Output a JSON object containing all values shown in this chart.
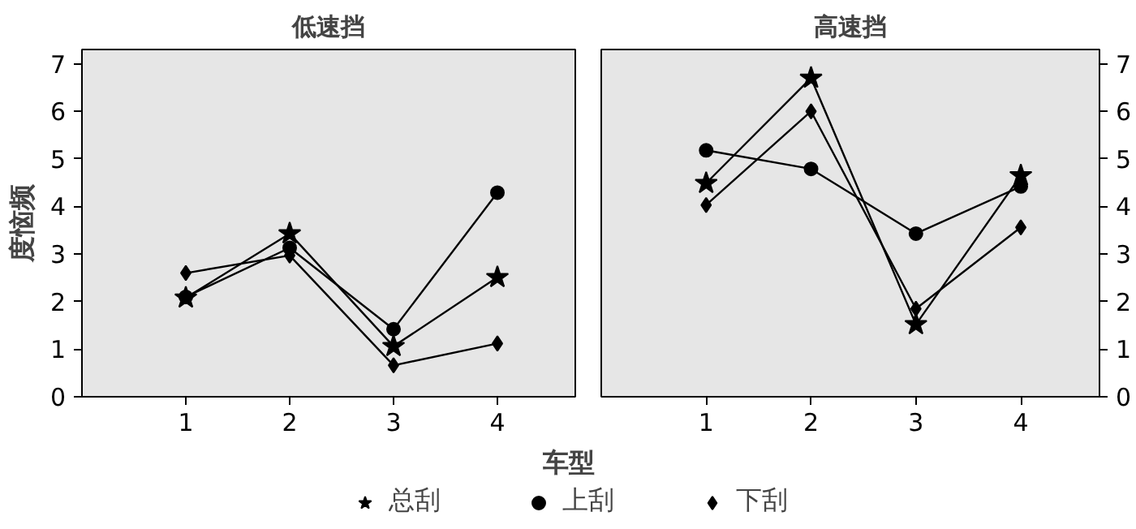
{
  "chart_data": [
    {
      "type": "line",
      "title": "低速挡",
      "ylabel": "度恼频",
      "xlabel": "车型",
      "x": [
        1,
        2,
        3,
        4
      ],
      "xlim": [
        0.0,
        4.75
      ],
      "xticks": [
        1,
        2,
        3,
        4
      ],
      "ylim": [
        0,
        7.3
      ],
      "yticks": [
        0,
        1,
        2,
        3,
        4,
        5,
        6,
        7
      ],
      "legend": "bottom",
      "grid": false,
      "series": [
        {
          "name": "总刮",
          "color": "#000000",
          "marker": "star",
          "values": [
            2.08,
            3.43,
            1.06,
            2.51
          ]
        },
        {
          "name": "上刮",
          "color": "#000000",
          "marker": "circle",
          "values": [
            2.1,
            3.13,
            1.42,
            4.29
          ]
        },
        {
          "name": "下刮",
          "color": "#000000",
          "marker": "diamond",
          "values": [
            2.6,
            2.97,
            0.66,
            1.12
          ]
        }
      ]
    },
    {
      "type": "line",
      "title": "高速挡",
      "x": [
        1,
        2,
        3,
        4
      ],
      "xlim": [
        0.0,
        4.75
      ],
      "xticks": [
        1,
        2,
        3,
        4
      ],
      "ylim": [
        0,
        7.3
      ],
      "yticks": [
        0,
        1,
        2,
        3,
        4,
        5,
        6,
        7
      ],
      "grid": false,
      "series": [
        {
          "color": "#000000",
          "marker": "star",
          "values": [
            4.49,
            6.7,
            1.52,
            4.65
          ]
        },
        {
          "color": "#000000",
          "marker": "circle",
          "values": [
            5.18,
            4.79,
            3.43,
            4.42
          ]
        },
        {
          "color": "#000000",
          "marker": "diamond",
          "values": [
            4.03,
            6.0,
            1.85,
            3.56
          ]
        }
      ]
    }
  ]
}
